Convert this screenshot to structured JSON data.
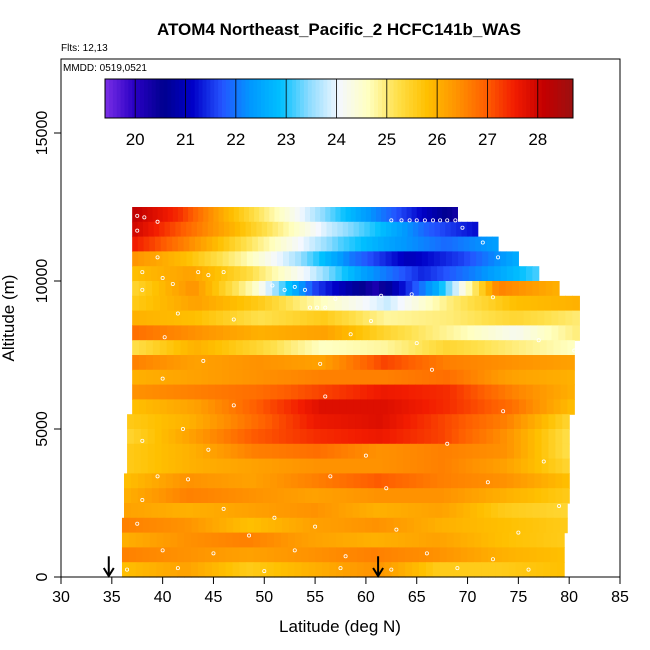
{
  "chart_data": {
    "type": "heatmap",
    "title": "ATOM4 Northeast_Pacific_2 HCFC141b_WAS",
    "flights_label": "Flts: 12,13",
    "dates_label": "MMDD: 0519,0521",
    "xlabel": "Latitude (deg N)",
    "ylabel": "Altitude (m)",
    "xlim": [
      30,
      85
    ],
    "ylim": [
      0,
      17500
    ],
    "x_ticks": [
      30,
      35,
      40,
      45,
      50,
      55,
      60,
      65,
      70,
      75,
      80,
      85
    ],
    "y_ticks": [
      0,
      5000,
      10000,
      15000
    ],
    "grid": false,
    "colorbar": {
      "position": "top inside plot",
      "min": 19.4,
      "max": 28.7,
      "tick_values": [
        20,
        21,
        22,
        23,
        24,
        25,
        26,
        27,
        28
      ],
      "colors": [
        "#7a2ee6",
        "#2a00c4",
        "#00008f",
        "#0000c8",
        "#2454ff",
        "#0099ff",
        "#00c0ff",
        "#8fdcff",
        "#f4f8ff",
        "#ffffc0",
        "#ffe04a",
        "#ffc000",
        "#ff9400",
        "#ff6000",
        "#f21c00",
        "#c40000",
        "#9b1010"
      ]
    },
    "colored_region": {
      "altitude_bottom": 0,
      "altitude_top": 12400,
      "latitude_min_at_bottom": 36,
      "latitude_min_at_top": 37,
      "latitude_max_at_bottom": 79.5,
      "latitude_max_at_top": 69
    },
    "altitude_bands": [
      {
        "alt": 12250,
        "lat_start": 37.0,
        "lat_end": 69,
        "values": [
          28.2,
          27.4,
          26.0,
          24.8,
          23.6,
          22.4,
          21.4,
          20.3
        ]
      },
      {
        "alt": 11750,
        "lat_start": 37.0,
        "lat_end": 71,
        "values": [
          28.0,
          27.0,
          26.0,
          24.9,
          23.8,
          22.9,
          21.8,
          21.2
        ]
      },
      {
        "alt": 11250,
        "lat_start": 37.0,
        "lat_end": 73,
        "values": [
          27.6,
          26.6,
          25.4,
          24.3,
          23.2,
          22.4,
          21.9,
          22.4
        ]
      },
      {
        "alt": 10750,
        "lat_start": 37.0,
        "lat_end": 75,
        "values": [
          26.4,
          25.8,
          24.8,
          23.6,
          22.0,
          21.0,
          21.6,
          22.6
        ]
      },
      {
        "alt": 10250,
        "lat_start": 37.0,
        "lat_end": 77,
        "values": [
          25.8,
          26.2,
          25.3,
          24.0,
          22.4,
          21.4,
          22.2,
          23.2
        ]
      },
      {
        "alt": 9750,
        "lat_start": 37.0,
        "lat_end": 79,
        "values": [
          25.4,
          26.4,
          24.6,
          21.6,
          20.2,
          22.6,
          26.6,
          26.0
        ]
      },
      {
        "alt": 9250,
        "lat_start": 37.0,
        "lat_end": 81,
        "values": [
          25.6,
          26.2,
          25.6,
          24.6,
          23.8,
          25.0,
          25.8,
          26.0
        ]
      },
      {
        "alt": 8750,
        "lat_start": 37.0,
        "lat_end": 81,
        "values": [
          26.0,
          25.8,
          25.2,
          25.6,
          24.8,
          25.0,
          25.4,
          25.0
        ]
      },
      {
        "alt": 8250,
        "lat_start": 37.0,
        "lat_end": 81,
        "values": [
          26.8,
          26.4,
          26.0,
          26.2,
          25.4,
          24.8,
          24.2,
          25.0
        ]
      },
      {
        "alt": 7750,
        "lat_start": 37.0,
        "lat_end": 80.5,
        "values": [
          25.2,
          26.0,
          25.4,
          24.6,
          24.8,
          25.4,
          25.0,
          24.6
        ]
      },
      {
        "alt": 7250,
        "lat_start": 37.0,
        "lat_end": 80.5,
        "values": [
          26.6,
          26.2,
          26.4,
          26.2,
          27.2,
          26.6,
          26.4,
          26.2
        ]
      },
      {
        "alt": 6750,
        "lat_start": 37.0,
        "lat_end": 80.5,
        "values": [
          26.0,
          26.2,
          26.4,
          26.6,
          26.6,
          26.8,
          26.2,
          26.0
        ]
      },
      {
        "alt": 6250,
        "lat_start": 37.0,
        "lat_end": 80.5,
        "values": [
          26.4,
          26.6,
          26.8,
          27.2,
          27.6,
          27.4,
          26.6,
          26.0
        ]
      },
      {
        "alt": 5750,
        "lat_start": 37.0,
        "lat_end": 80.5,
        "values": [
          25.8,
          26.2,
          27.0,
          27.8,
          27.8,
          27.4,
          26.8,
          25.8
        ]
      },
      {
        "alt": 5250,
        "lat_start": 36.5,
        "lat_end": 80.0,
        "values": [
          25.6,
          26.0,
          26.8,
          27.6,
          27.8,
          27.2,
          26.6,
          25.4
        ]
      },
      {
        "alt": 4750,
        "lat_start": 36.5,
        "lat_end": 80.0,
        "values": [
          25.4,
          26.2,
          27.0,
          27.4,
          27.6,
          27.2,
          26.4,
          25.2
        ]
      },
      {
        "alt": 4250,
        "lat_start": 36.5,
        "lat_end": 80.0,
        "values": [
          25.6,
          26.0,
          26.6,
          26.8,
          26.4,
          26.6,
          26.4,
          25.2
        ]
      },
      {
        "alt": 3750,
        "lat_start": 36.5,
        "lat_end": 80.0,
        "values": [
          25.6,
          26.0,
          26.2,
          26.4,
          26.4,
          26.6,
          26.2,
          25.4
        ]
      },
      {
        "alt": 3250,
        "lat_start": 36.2,
        "lat_end": 80.0,
        "values": [
          25.8,
          26.4,
          26.2,
          26.6,
          27.0,
          26.6,
          26.4,
          25.8
        ]
      },
      {
        "alt": 2750,
        "lat_start": 36.2,
        "lat_end": 80.0,
        "values": [
          26.0,
          26.6,
          26.4,
          26.2,
          26.4,
          26.4,
          26.0,
          25.6
        ]
      },
      {
        "alt": 2250,
        "lat_start": 36.2,
        "lat_end": 79.8,
        "values": [
          26.2,
          26.0,
          26.2,
          26.4,
          26.0,
          26.2,
          25.6,
          25.4
        ]
      },
      {
        "alt": 1750,
        "lat_start": 36.0,
        "lat_end": 79.8,
        "values": [
          26.6,
          26.4,
          25.8,
          26.2,
          26.4,
          26.0,
          25.8,
          25.6
        ]
      },
      {
        "alt": 1250,
        "lat_start": 36.0,
        "lat_end": 79.5,
        "values": [
          26.0,
          26.4,
          26.6,
          26.2,
          26.0,
          26.2,
          25.8,
          25.6
        ]
      },
      {
        "alt": 750,
        "lat_start": 36.0,
        "lat_end": 79.5,
        "values": [
          26.6,
          26.4,
          26.2,
          26.4,
          26.6,
          26.4,
          26.0,
          25.8
        ]
      },
      {
        "alt": 250,
        "lat_start": 36.0,
        "lat_end": 79.5,
        "values": [
          25.8,
          26.2,
          25.6,
          26.0,
          26.4,
          25.6,
          25.6,
          25.8
        ]
      }
    ],
    "sample_points": [
      {
        "lat": 37.5,
        "alt": 12200
      },
      {
        "lat": 38.2,
        "alt": 12150
      },
      {
        "lat": 39.5,
        "alt": 12000
      },
      {
        "lat": 62.5,
        "alt": 12050
      },
      {
        "lat": 63.5,
        "alt": 12050
      },
      {
        "lat": 64.3,
        "alt": 12050
      },
      {
        "lat": 65.0,
        "alt": 12050
      },
      {
        "lat": 65.8,
        "alt": 12050
      },
      {
        "lat": 66.6,
        "alt": 12050
      },
      {
        "lat": 67.3,
        "alt": 12050
      },
      {
        "lat": 68.0,
        "alt": 12050
      },
      {
        "lat": 68.8,
        "alt": 12050
      },
      {
        "lat": 37.5,
        "alt": 11700
      },
      {
        "lat": 69.5,
        "alt": 11800
      },
      {
        "lat": 71.5,
        "alt": 11300
      },
      {
        "lat": 39.5,
        "alt": 10800
      },
      {
        "lat": 73.0,
        "alt": 10800
      },
      {
        "lat": 38.0,
        "alt": 10300
      },
      {
        "lat": 40.0,
        "alt": 10100
      },
      {
        "lat": 43.5,
        "alt": 10300
      },
      {
        "lat": 44.5,
        "alt": 10200
      },
      {
        "lat": 46.0,
        "alt": 10300
      },
      {
        "lat": 41.0,
        "alt": 9900
      },
      {
        "lat": 38.0,
        "alt": 9700
      },
      {
        "lat": 50.8,
        "alt": 9850
      },
      {
        "lat": 52.0,
        "alt": 9700
      },
      {
        "lat": 53.0,
        "alt": 9800
      },
      {
        "lat": 54.0,
        "alt": 9700
      },
      {
        "lat": 54.5,
        "alt": 9100
      },
      {
        "lat": 55.2,
        "alt": 9100
      },
      {
        "lat": 56.0,
        "alt": 9100
      },
      {
        "lat": 57.0,
        "alt": 9400
      },
      {
        "lat": 61.5,
        "alt": 9500
      },
      {
        "lat": 64.5,
        "alt": 9550
      },
      {
        "lat": 72.5,
        "alt": 9450
      },
      {
        "lat": 81.5,
        "alt": 8900
      },
      {
        "lat": 41.5,
        "alt": 8900
      },
      {
        "lat": 60.5,
        "alt": 8650
      },
      {
        "lat": 58.5,
        "alt": 8200
      },
      {
        "lat": 77.0,
        "alt": 8000
      },
      {
        "lat": 40.2,
        "alt": 8100
      },
      {
        "lat": 47.0,
        "alt": 8700
      },
      {
        "lat": 65.0,
        "alt": 7900
      },
      {
        "lat": 80.5,
        "alt": 7650
      },
      {
        "lat": 44.0,
        "alt": 7300
      },
      {
        "lat": 55.5,
        "alt": 7200
      },
      {
        "lat": 66.5,
        "alt": 7000
      },
      {
        "lat": 40.0,
        "alt": 6700
      },
      {
        "lat": 56.0,
        "alt": 6100
      },
      {
        "lat": 47.0,
        "alt": 5800
      },
      {
        "lat": 73.5,
        "alt": 5600
      },
      {
        "lat": 42.0,
        "alt": 5000
      },
      {
        "lat": 38.0,
        "alt": 4600
      },
      {
        "lat": 44.5,
        "alt": 4300
      },
      {
        "lat": 60.0,
        "alt": 4100
      },
      {
        "lat": 68.0,
        "alt": 4500
      },
      {
        "lat": 77.5,
        "alt": 3900
      },
      {
        "lat": 39.5,
        "alt": 3400
      },
      {
        "lat": 42.5,
        "alt": 3300
      },
      {
        "lat": 56.5,
        "alt": 3400
      },
      {
        "lat": 62.0,
        "alt": 3000
      },
      {
        "lat": 72.0,
        "alt": 3200
      },
      {
        "lat": 38.0,
        "alt": 2600
      },
      {
        "lat": 46.0,
        "alt": 2300
      },
      {
        "lat": 51.0,
        "alt": 2000
      },
      {
        "lat": 79.0,
        "alt": 2400
      },
      {
        "lat": 37.5,
        "alt": 1800
      },
      {
        "lat": 48.5,
        "alt": 1400
      },
      {
        "lat": 55.0,
        "alt": 1700
      },
      {
        "lat": 63.0,
        "alt": 1600
      },
      {
        "lat": 75.0,
        "alt": 1500
      },
      {
        "lat": 40.0,
        "alt": 900
      },
      {
        "lat": 45.0,
        "alt": 800
      },
      {
        "lat": 53.0,
        "alt": 900
      },
      {
        "lat": 58.0,
        "alt": 700
      },
      {
        "lat": 66.0,
        "alt": 800
      },
      {
        "lat": 72.5,
        "alt": 600
      },
      {
        "lat": 36.5,
        "alt": 250
      },
      {
        "lat": 41.5,
        "alt": 300
      },
      {
        "lat": 50.0,
        "alt": 200
      },
      {
        "lat": 57.5,
        "alt": 300
      },
      {
        "lat": 62.5,
        "alt": 250
      },
      {
        "lat": 69.0,
        "alt": 300
      },
      {
        "lat": 76.0,
        "alt": 250
      }
    ],
    "arrows": [
      {
        "lat": 34.7,
        "alt_top": 700,
        "alt_bottom": 0
      },
      {
        "lat": 61.2,
        "alt_top": 700,
        "alt_bottom": 0
      }
    ]
  }
}
